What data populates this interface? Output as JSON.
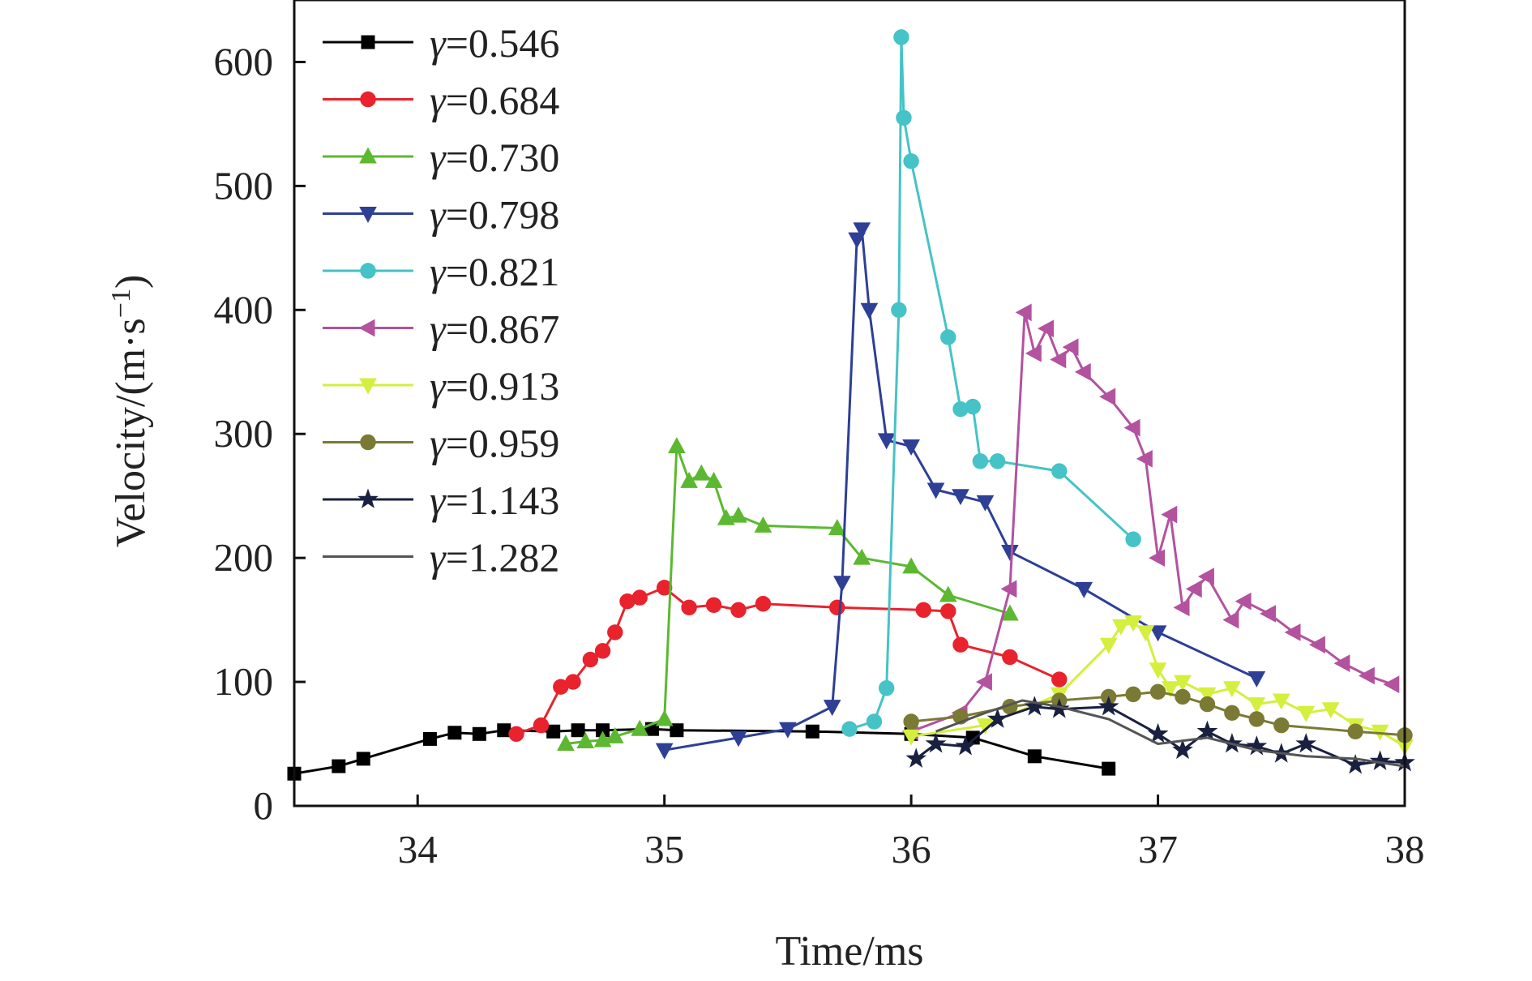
{
  "chart_data": {
    "type": "line",
    "xlabel": "Time/ms",
    "ylabel": "Velocity/(m·s",
    "ylabel_superscript": "−1",
    "ylabel_suffix": ")",
    "xlim": [
      33.5,
      38
    ],
    "ylim": [
      0,
      650
    ],
    "x_ticks": [
      34,
      35,
      36,
      37,
      38
    ],
    "y_ticks": [
      0,
      100,
      200,
      300,
      400,
      500,
      600
    ],
    "legend_position": "top-left",
    "series": [
      {
        "name": "γ=0.546",
        "legend_symbol": "γ",
        "legend_value": "=0.546",
        "color": "#000000",
        "marker": "square",
        "x": [
          33.5,
          33.68,
          33.78,
          34.05,
          34.15,
          34.25,
          34.35,
          34.55,
          34.65,
          34.75,
          34.95,
          35.05,
          35.6,
          36.0,
          36.25,
          36.5,
          36.8
        ],
        "y": [
          26,
          32,
          38,
          54,
          59,
          58,
          61,
          60,
          61,
          61,
          62,
          61,
          60,
          58,
          55,
          40,
          30
        ]
      },
      {
        "name": "γ=0.684",
        "legend_symbol": "γ",
        "legend_value": "=0.684",
        "color": "#e8232d",
        "marker": "circle",
        "x": [
          34.4,
          34.5,
          34.58,
          34.63,
          34.7,
          34.75,
          34.8,
          34.85,
          34.9,
          35.0,
          35.1,
          35.2,
          35.3,
          35.4,
          35.7,
          36.05,
          36.15,
          36.2,
          36.4,
          36.6
        ],
        "y": [
          58,
          65,
          96,
          100,
          118,
          125,
          140,
          165,
          168,
          176,
          160,
          162,
          158,
          163,
          160,
          158,
          157,
          130,
          120,
          102
        ]
      },
      {
        "name": "γ=0.730",
        "legend_symbol": "γ",
        "legend_value": "=0.730",
        "color": "#5cb830",
        "marker": "triangle-up",
        "x": [
          34.6,
          34.68,
          34.75,
          34.8,
          34.9,
          35.0,
          35.05,
          35.1,
          35.15,
          35.2,
          35.25,
          35.3,
          35.4,
          35.7,
          35.8,
          36.0,
          36.15,
          36.4
        ],
        "y": [
          50,
          52,
          53,
          56,
          62,
          70,
          290,
          262,
          268,
          262,
          232,
          234,
          226,
          224,
          200,
          193,
          170,
          155
        ]
      },
      {
        "name": "γ=0.798",
        "legend_symbol": "γ",
        "legend_value": "=0.798",
        "color": "#2e3f96",
        "marker": "triangle-down",
        "x": [
          35.0,
          35.3,
          35.5,
          35.68,
          35.72,
          35.78,
          35.8,
          35.83,
          35.9,
          36.0,
          36.1,
          36.2,
          36.3,
          36.4,
          36.7,
          37.0,
          37.4
        ],
        "y": [
          45,
          55,
          62,
          80,
          180,
          457,
          465,
          400,
          295,
          290,
          255,
          250,
          245,
          205,
          175,
          140,
          103
        ]
      },
      {
        "name": "γ=0.821",
        "legend_symbol": "γ",
        "legend_value": "=0.821",
        "color": "#45c3c6",
        "marker": "circle",
        "x": [
          35.75,
          35.85,
          35.9,
          35.95,
          35.96,
          35.97,
          36.0,
          36.15,
          36.2,
          36.25,
          36.28,
          36.35,
          36.6,
          36.9
        ],
        "y": [
          62,
          68,
          95,
          400,
          620,
          555,
          520,
          378,
          320,
          322,
          278,
          278,
          270,
          215
        ]
      },
      {
        "name": "γ=0.867",
        "legend_symbol": "γ",
        "legend_value": "=0.867",
        "color": "#b3529f",
        "marker": "triangle-left",
        "x": [
          36.0,
          36.2,
          36.3,
          36.4,
          36.46,
          36.5,
          36.55,
          36.6,
          36.65,
          36.7,
          36.8,
          36.9,
          36.95,
          37.0,
          37.05,
          37.1,
          37.15,
          37.2,
          37.3,
          37.35,
          37.45,
          37.55,
          37.65,
          37.75,
          37.85,
          37.95
        ],
        "y": [
          60,
          75,
          100,
          175,
          398,
          365,
          385,
          360,
          370,
          350,
          330,
          305,
          280,
          200,
          235,
          160,
          175,
          185,
          150,
          165,
          155,
          140,
          130,
          115,
          105,
          98
        ]
      },
      {
        "name": "γ=0.913",
        "legend_symbol": "γ",
        "legend_value": "=0.913",
        "color": "#d4ef3d",
        "marker": "triangle-down",
        "x": [
          36.0,
          36.3,
          36.6,
          36.8,
          36.85,
          36.9,
          36.95,
          37.0,
          37.05,
          37.1,
          37.2,
          37.3,
          37.4,
          37.5,
          37.6,
          37.7,
          37.8,
          37.9,
          38.0
        ],
        "y": [
          56,
          65,
          90,
          130,
          145,
          148,
          140,
          110,
          95,
          100,
          90,
          95,
          82,
          85,
          75,
          78,
          65,
          60,
          48
        ]
      },
      {
        "name": "γ=0.959",
        "legend_symbol": "γ",
        "legend_value": "=0.959",
        "color": "#7a7a35",
        "marker": "circle",
        "x": [
          36.0,
          36.2,
          36.4,
          36.6,
          36.8,
          36.9,
          37.0,
          37.1,
          37.2,
          37.3,
          37.4,
          37.5,
          37.8,
          38.0
        ],
        "y": [
          68,
          72,
          80,
          85,
          88,
          90,
          92,
          88,
          82,
          75,
          70,
          65,
          60,
          57
        ]
      },
      {
        "name": "γ=1.143",
        "legend_symbol": "γ",
        "legend_value": "=1.143",
        "color": "#1a2040",
        "marker": "star",
        "x": [
          36.02,
          36.1,
          36.22,
          36.35,
          36.5,
          36.6,
          36.8,
          37.0,
          37.1,
          37.2,
          37.3,
          37.4,
          37.5,
          37.6,
          37.8,
          37.9,
          38.0
        ],
        "y": [
          38,
          50,
          48,
          70,
          80,
          78,
          80,
          58,
          45,
          60,
          50,
          48,
          42,
          50,
          33,
          36,
          35
        ]
      },
      {
        "name": "γ=1.282",
        "legend_symbol": "γ",
        "legend_value": "=1.282",
        "color": "#555555",
        "marker": "none",
        "x": [
          36.1,
          36.3,
          36.45,
          36.6,
          36.8,
          37.0,
          37.2,
          37.4,
          37.6,
          37.8,
          38.0
        ],
        "y": [
          60,
          75,
          85,
          80,
          70,
          50,
          55,
          45,
          40,
          38,
          32
        ]
      }
    ]
  }
}
